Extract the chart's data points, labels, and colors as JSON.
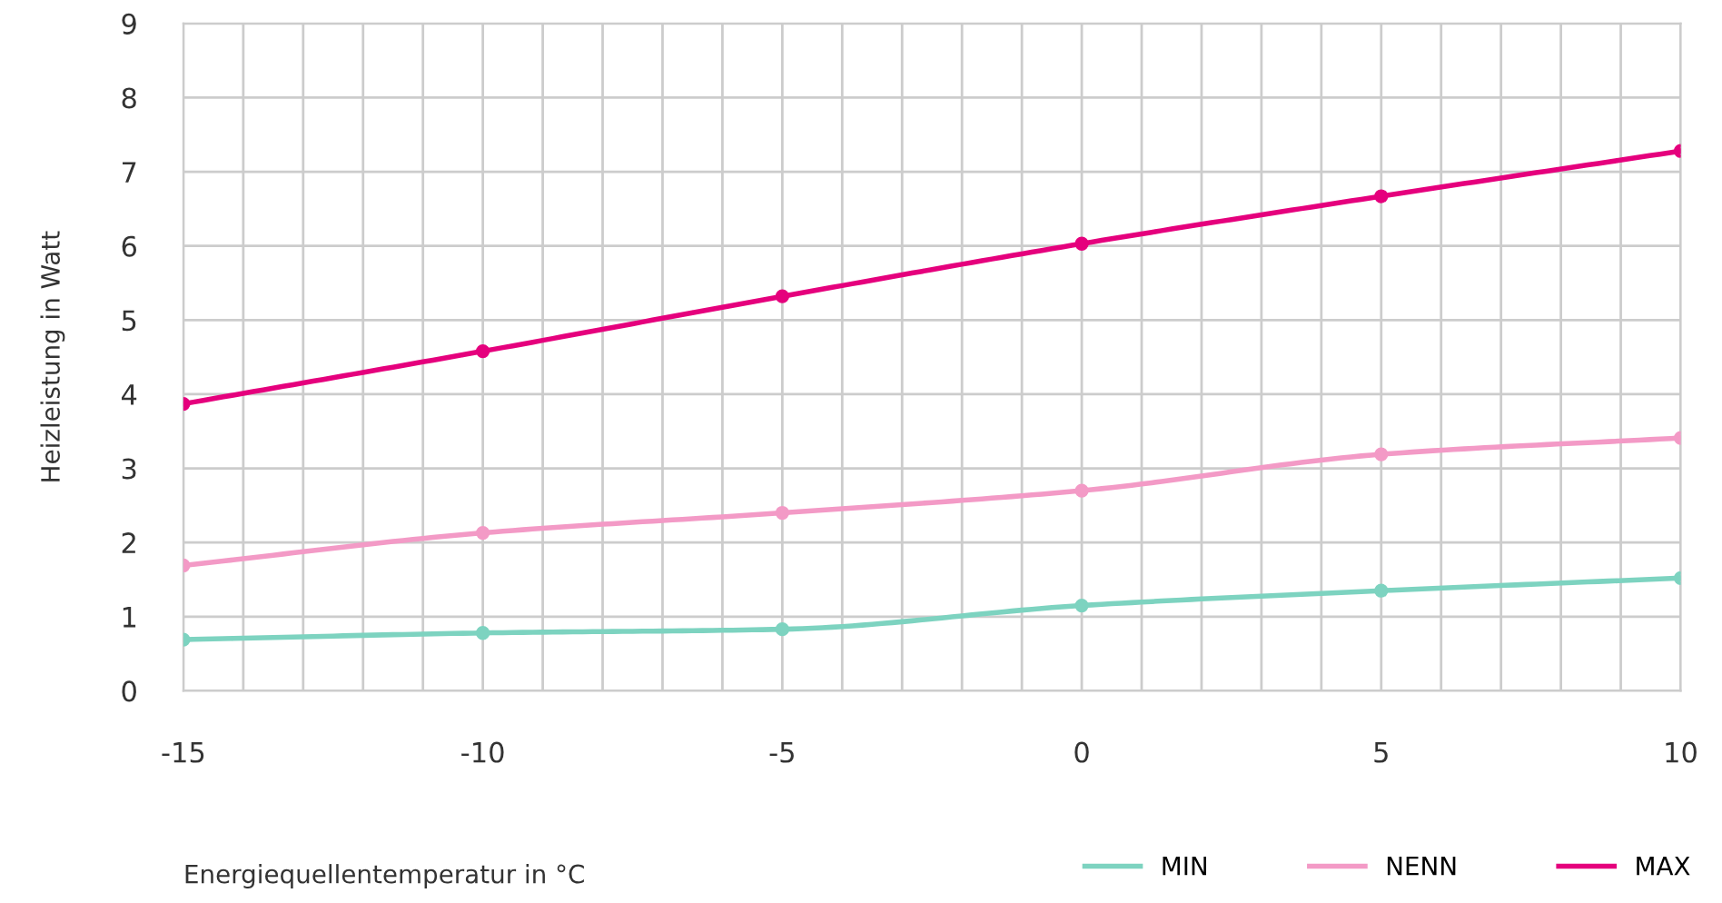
{
  "chart_data": {
    "type": "line",
    "xlabel": "Energiequellentemperatur in °C",
    "ylabel": "Heizleistung in Watt",
    "x": [
      -15,
      -10,
      -5,
      0,
      5,
      10
    ],
    "series": [
      {
        "name": "MIN",
        "color": "#7dd3c0",
        "values": [
          0.69,
          0.78,
          0.83,
          1.15,
          1.35,
          1.52
        ]
      },
      {
        "name": "NENN",
        "color": "#f39ac6",
        "values": [
          1.69,
          2.13,
          2.4,
          2.7,
          3.19,
          3.41
        ]
      },
      {
        "name": "MAX",
        "color": "#e5007d",
        "values": [
          3.87,
          4.58,
          5.32,
          6.03,
          6.67,
          7.28
        ]
      }
    ],
    "xlim": [
      -15,
      10
    ],
    "xticks": [
      -15,
      {
        "value": -14,
        "label": null
      },
      {
        "value": -13,
        "label": null
      },
      {
        "value": -12,
        "label": null
      },
      {
        "value": -11,
        "label": null
      },
      -10,
      {
        "value": -9,
        "label": null
      },
      {
        "value": -8,
        "label": null
      },
      {
        "value": -7,
        "label": null
      },
      {
        "value": -6,
        "label": null
      },
      -5,
      {
        "value": -4,
        "label": null
      },
      {
        "value": -3,
        "label": null
      },
      {
        "value": -2,
        "label": null
      },
      {
        "value": -1,
        "label": null
      },
      0,
      {
        "value": 1,
        "label": null
      },
      {
        "value": 2,
        "label": null
      },
      {
        "value": 3,
        "label": null
      },
      {
        "value": 4,
        "label": null
      },
      5,
      {
        "value": 6,
        "label": null
      },
      {
        "value": 7,
        "label": null
      },
      {
        "value": 8,
        "label": null
      },
      {
        "value": 9,
        "label": null
      },
      10
    ],
    "ylim": [
      0,
      9
    ],
    "yticks": [
      0,
      1,
      2,
      3,
      4,
      5,
      6,
      7,
      8,
      9
    ],
    "grid": true,
    "legend": "bottom right",
    "marker": "circle",
    "line_style": "solid"
  }
}
